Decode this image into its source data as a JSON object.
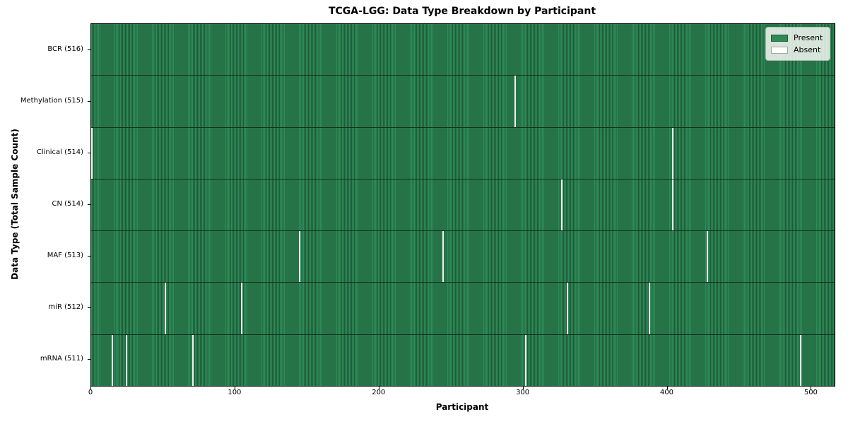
{
  "title": "TCGA-LGG: Data Type Breakdown by Participant",
  "legend": {
    "present_label": "Present",
    "absent_label": "Absent",
    "position": "upper right"
  },
  "colors": {
    "present": "#2E8B57",
    "present_edge": "#1E5B39",
    "absent": "#FFFFFF",
    "absent_line": "#F0F0EC",
    "row_border": "#14321F",
    "spine": "#000000",
    "background": "#FFFFFF"
  },
  "chart_data": {
    "type": "heatmap",
    "title": "TCGA-LGG: Data Type Breakdown by Participant",
    "xlabel": "Participant",
    "ylabel": "Data Type (Total Sample Count)",
    "xlim": [
      0,
      516
    ],
    "total_participants": 516,
    "grid": false,
    "legend_position": "upper right",
    "x_ticks": [
      {
        "value": 0,
        "label": "0"
      },
      {
        "value": 100,
        "label": "100"
      },
      {
        "value": 200,
        "label": "200"
      },
      {
        "value": 300,
        "label": "300"
      },
      {
        "value": 400,
        "label": "400"
      },
      {
        "value": 500,
        "label": "500"
      }
    ],
    "rows": [
      {
        "data_type": "BCR",
        "label": "BCR (516)",
        "count": 516,
        "absent_participants": []
      },
      {
        "data_type": "Methylation",
        "label": "Methylation (515)",
        "count": 515,
        "absent_participants": [
          294
        ]
      },
      {
        "data_type": "Clinical",
        "label": "Clinical (514)",
        "count": 514,
        "absent_participants": [
          0,
          403
        ]
      },
      {
        "data_type": "CN",
        "label": "CN (514)",
        "count": 514,
        "absent_participants": [
          326,
          403
        ]
      },
      {
        "data_type": "MAF",
        "label": "MAF (513)",
        "count": 513,
        "absent_participants": [
          144,
          244,
          427
        ]
      },
      {
        "data_type": "miR",
        "label": "miR (512)",
        "count": 512,
        "absent_participants": [
          51,
          104,
          330,
          387
        ]
      },
      {
        "data_type": "mRNA",
        "label": "mRNA (511)",
        "count": 511,
        "absent_participants": [
          14,
          24,
          70,
          301,
          492
        ]
      }
    ]
  }
}
